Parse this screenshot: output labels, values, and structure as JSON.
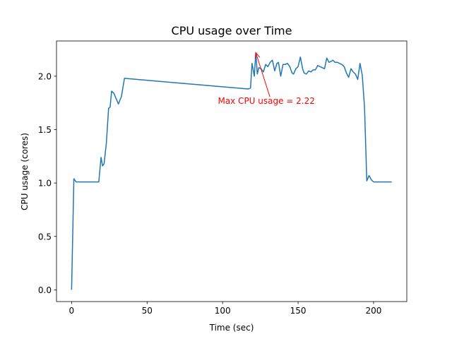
{
  "chart_data": {
    "type": "line",
    "title": "CPU usage over Time",
    "xlabel": "Time (sec)",
    "ylabel": "CPU usage (cores)",
    "xlim": [
      -10,
      222
    ],
    "ylim": [
      -0.11,
      2.33
    ],
    "xticks": [
      0,
      50,
      100,
      150,
      200
    ],
    "yticks": [
      0.0,
      0.5,
      1.0,
      1.5,
      2.0
    ],
    "xtick_labels": [
      "0",
      "50",
      "100",
      "150",
      "200"
    ],
    "ytick_labels": [
      "0.0",
      "0.5",
      "1.0",
      "1.5",
      "2.0"
    ],
    "grid": false,
    "series": [
      {
        "color": "#1f77b4",
        "x": [
          0,
          1.5,
          3,
          5,
          8,
          10,
          13,
          16,
          17,
          18,
          19.5,
          20.5,
          21.5,
          23,
          24.5,
          25.5,
          26.5,
          28,
          29.5,
          31,
          33,
          35,
          117,
          118.5,
          119.5,
          121,
          122,
          123,
          124,
          125.5,
          127,
          128.5,
          130,
          131.5,
          133,
          134.5,
          136,
          137,
          138.5,
          140,
          141.5,
          143,
          144.5,
          146,
          147,
          148.5,
          150,
          151.5,
          153,
          154,
          155.5,
          157,
          158.5,
          160,
          161.5,
          163,
          164.5,
          166,
          167.5,
          169,
          170.5,
          172,
          173,
          174.5,
          176,
          177.5,
          179,
          180.5,
          182,
          183.5,
          185,
          186.5,
          188,
          189.5,
          191,
          192.5,
          194,
          195.5,
          197,
          198.5,
          200,
          201,
          202,
          203,
          204,
          205,
          206,
          207,
          208,
          210,
          212
        ],
        "values": [
          0.0,
          1.04,
          1.01,
          1.01,
          1.01,
          1.01,
          1.01,
          1.01,
          1.01,
          1.01,
          1.24,
          1.16,
          1.18,
          1.37,
          1.7,
          1.71,
          1.86,
          1.84,
          1.79,
          1.74,
          1.81,
          1.98,
          1.88,
          1.89,
          2.12,
          2.0,
          2.22,
          2.02,
          2.08,
          2.07,
          2.04,
          2.11,
          2.09,
          2.13,
          2.15,
          2.05,
          2.12,
          2.13,
          2.0,
          2.11,
          2.11,
          2.12,
          2.09,
          2.03,
          2.02,
          2.07,
          2.09,
          2.18,
          2.07,
          2.03,
          2.02,
          2.05,
          2.04,
          2.06,
          2.06,
          2.1,
          2.09,
          2.08,
          2.07,
          2.17,
          2.13,
          2.14,
          2.15,
          2.13,
          2.13,
          2.12,
          2.11,
          2.09,
          2.03,
          1.99,
          2.07,
          2.04,
          2.02,
          1.97,
          2.12,
          2.01,
          1.71,
          1.02,
          1.07,
          1.03,
          1.01,
          1.01,
          1.01,
          1.01,
          1.01,
          1.01,
          1.01,
          1.01,
          1.01,
          1.01,
          1.01
        ]
      }
    ],
    "annotation": {
      "text": "Max CPU usage = 2.22",
      "color": "#ff0000",
      "point": [
        122,
        2.22
      ],
      "text_anchor_value": [
        129,
        1.74
      ]
    }
  }
}
